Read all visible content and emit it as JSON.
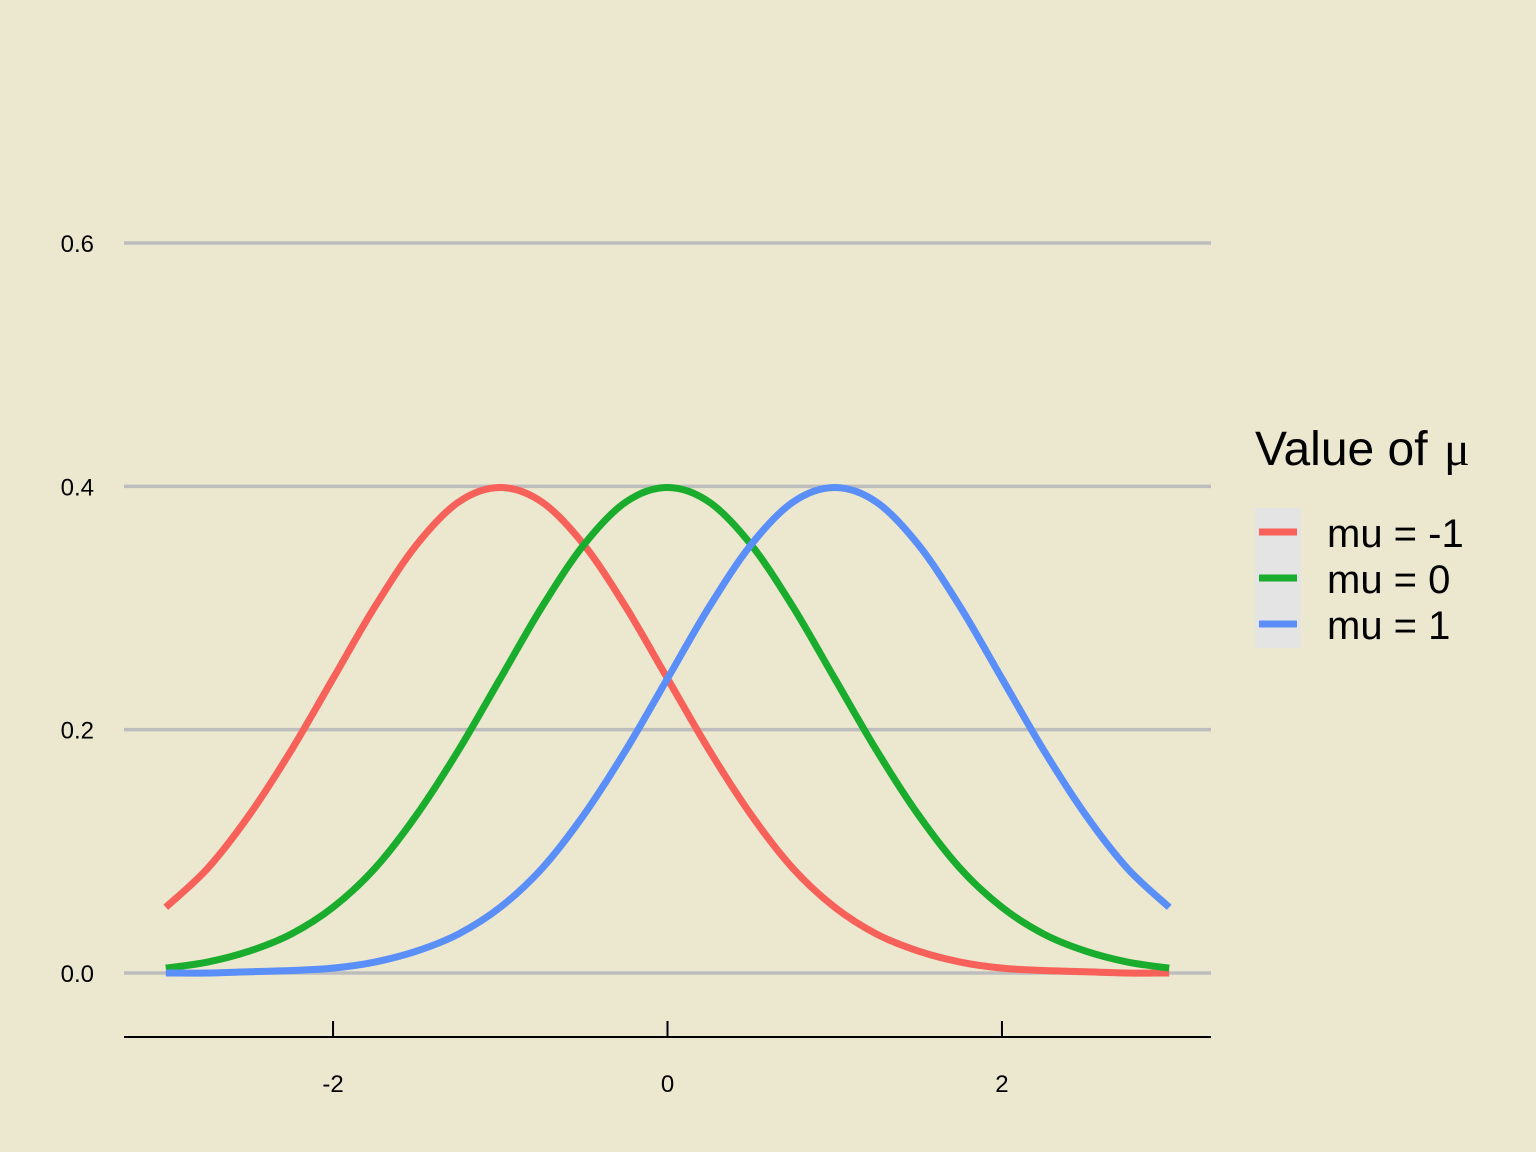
{
  "chart_data": {
    "type": "line",
    "title": "",
    "xlabel": "",
    "ylabel": "",
    "xlim": [
      -3.25,
      3.25
    ],
    "ylim": [
      -0.037,
      0.66
    ],
    "x_ticks": [
      -2,
      0,
      2
    ],
    "x_tick_labels": [
      "-2",
      "0",
      "2"
    ],
    "y_ticks": [
      0.0,
      0.2,
      0.4,
      0.6
    ],
    "y_tick_labels": [
      "0.0",
      "0.2",
      "0.4",
      "0.6"
    ],
    "grid": "horizontal",
    "x": [
      -3.0,
      -2.75,
      -2.5,
      -2.25,
      -2.0,
      -1.75,
      -1.5,
      -1.25,
      -1.0,
      -0.75,
      -0.5,
      -0.25,
      0.0,
      0.25,
      0.5,
      0.75,
      1.0,
      1.25,
      1.5,
      1.75,
      2.0,
      2.25,
      2.5,
      2.75,
      3.0
    ],
    "series": [
      {
        "name": "mu = -1",
        "color": "#f8605a",
        "values": [
          0.054,
          0.086,
          0.13,
          0.183,
          0.242,
          0.301,
          0.352,
          0.387,
          0.399,
          0.387,
          0.352,
          0.301,
          0.242,
          0.183,
          0.13,
          0.086,
          0.054,
          0.032,
          0.018,
          0.009,
          0.004,
          0.002,
          0.001,
          0.0,
          0.0
        ]
      },
      {
        "name": "mu = 0",
        "color": "#1aad2d",
        "values": [
          0.004,
          0.009,
          0.018,
          0.032,
          0.054,
          0.086,
          0.13,
          0.183,
          0.242,
          0.301,
          0.352,
          0.387,
          0.399,
          0.387,
          0.352,
          0.301,
          0.242,
          0.183,
          0.13,
          0.086,
          0.054,
          0.032,
          0.018,
          0.009,
          0.004
        ]
      },
      {
        "name": "mu = 1",
        "color": "#5a8ef8",
        "values": [
          0.0,
          0.0,
          0.001,
          0.002,
          0.004,
          0.009,
          0.018,
          0.032,
          0.054,
          0.086,
          0.13,
          0.183,
          0.242,
          0.301,
          0.352,
          0.387,
          0.399,
          0.387,
          0.352,
          0.301,
          0.242,
          0.183,
          0.13,
          0.086,
          0.054
        ]
      }
    ],
    "legend": {
      "title": "Value of",
      "title_symbol": "μ",
      "position": "right",
      "entries": [
        "mu = -1",
        "mu = 0",
        "mu = 1"
      ]
    }
  },
  "colors": {
    "background": "#ece7cf",
    "grid": "#bdbdbd",
    "legend_key_bg": "#e4e4e4"
  }
}
